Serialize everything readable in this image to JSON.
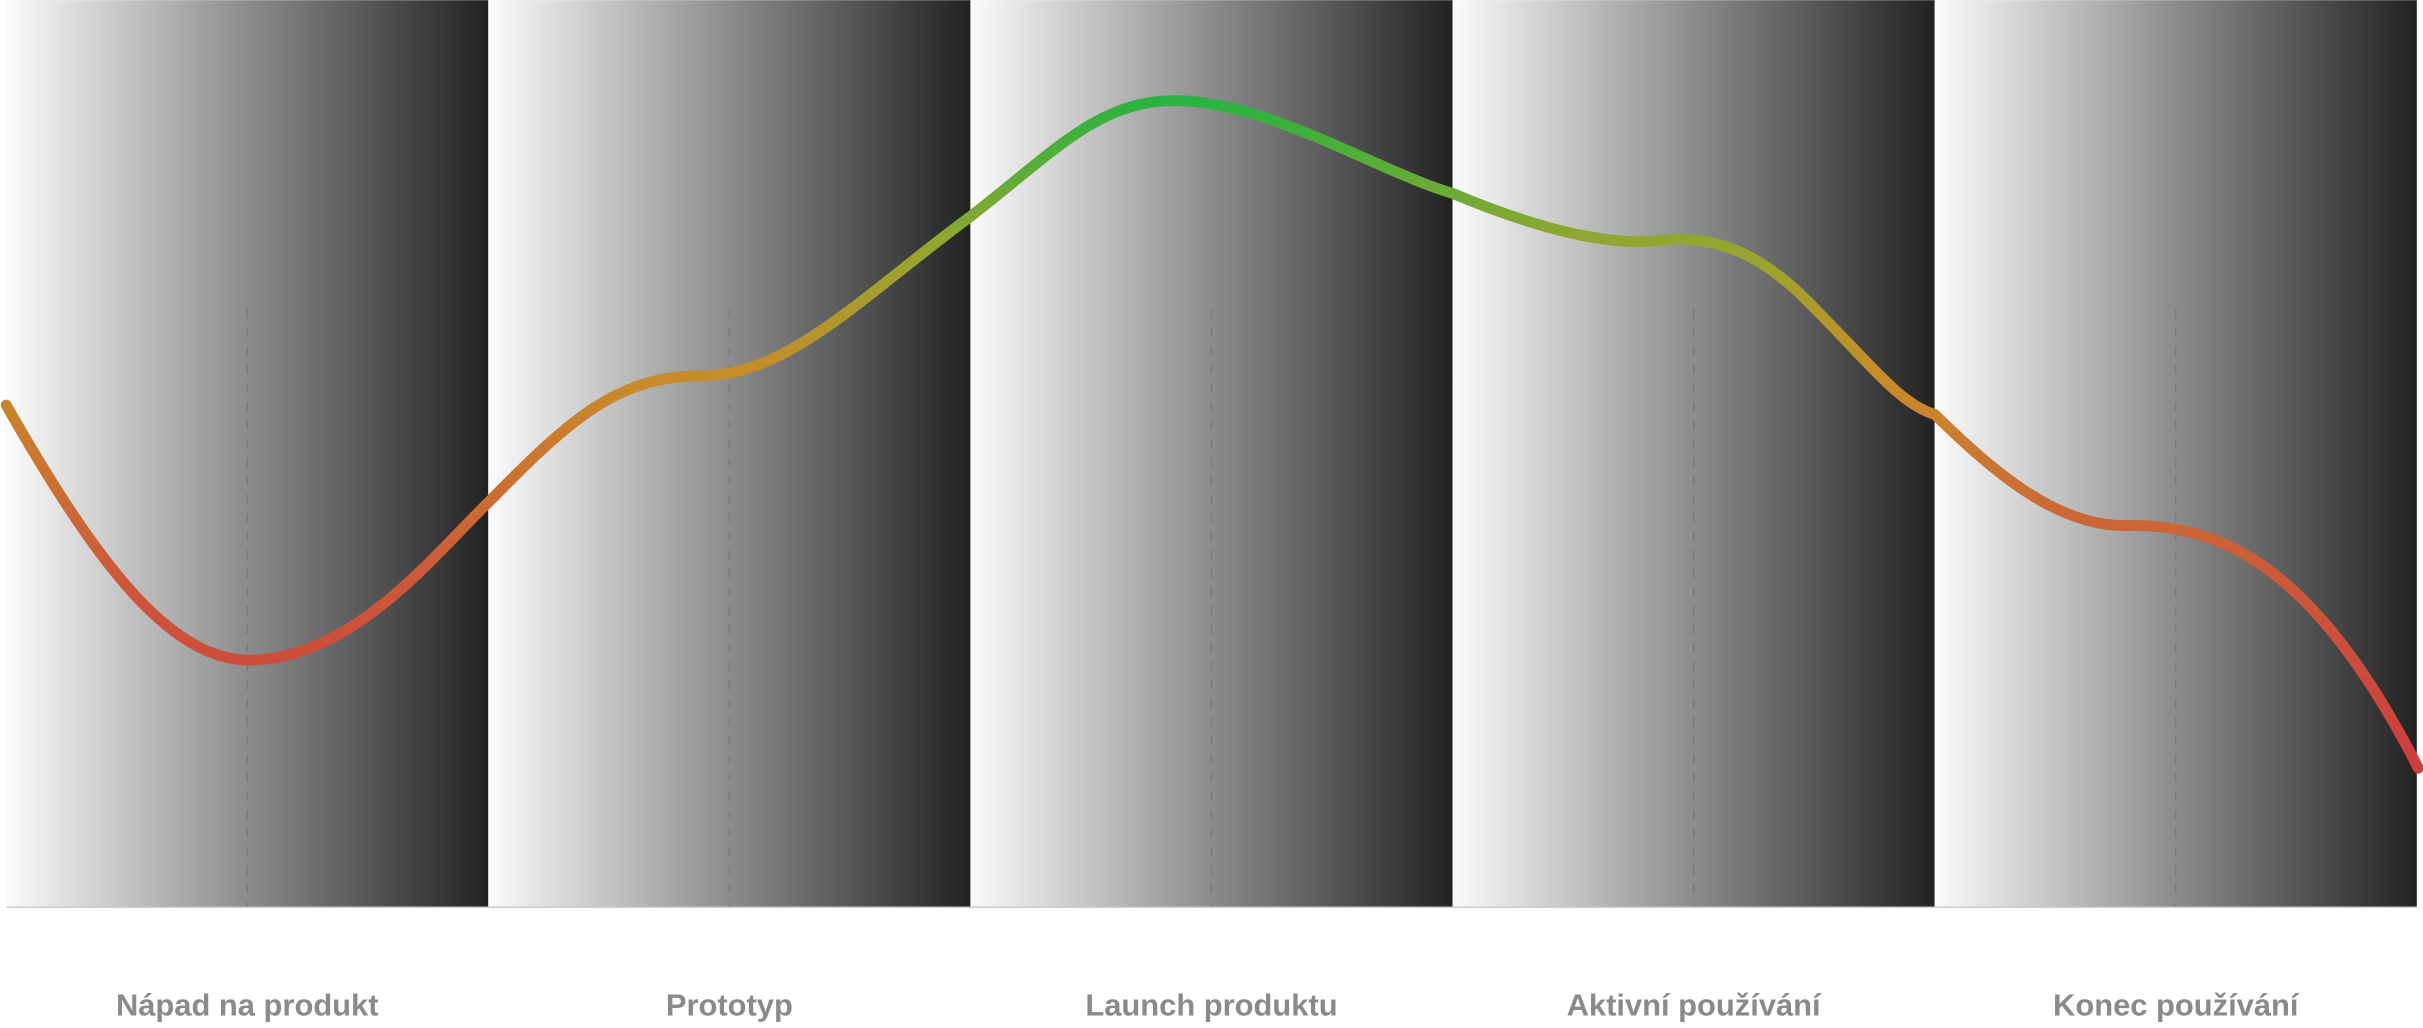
{
  "stages": [
    "Nápad na produkt",
    "Prototyp",
    "Launch produktu",
    "Aktivní používání",
    "Konec používání"
  ]
}
